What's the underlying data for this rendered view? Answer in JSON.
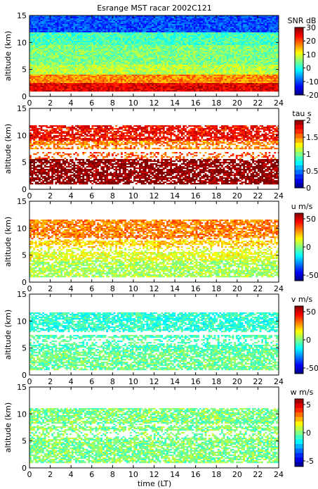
{
  "chart_data": {
    "type": "heatmap",
    "title": "Esrange MST racar 2002C121",
    "xlabel": "time (LT)",
    "xlim": [
      0,
      24
    ],
    "x_ticks": [
      "0",
      "2",
      "4",
      "6",
      "8",
      "10",
      "12",
      "14",
      "16",
      "18",
      "20",
      "22",
      "24"
    ],
    "panels": [
      {
        "name": "snr",
        "ylabel": "altitude (km)",
        "ylim": [
          0,
          15
        ],
        "y_ticks": [
          "0",
          "5",
          "10",
          "15"
        ],
        "colorbar_label": "SNR dB",
        "clim": [
          -20,
          30
        ],
        "colorbar_ticks": [
          "30",
          "20",
          "10",
          "0",
          "-10",
          "-20"
        ],
        "colormap": "jet",
        "coverage": "full",
        "bands": [
          {
            "alt_km": [
              1.0,
              2.5
            ],
            "value": 25
          },
          {
            "alt_km": [
              2.5,
              4.0
            ],
            "value": 17
          },
          {
            "alt_km": [
              4.0,
              6.0
            ],
            "value": 8
          },
          {
            "alt_km": [
              6.0,
              9.5
            ],
            "value": 5
          },
          {
            "alt_km": [
              9.5,
              12.0
            ],
            "value": 2
          },
          {
            "alt_km": [
              12.0,
              15.0
            ],
            "value": -10
          }
        ]
      },
      {
        "name": "tau",
        "ylabel": "altitude (km)",
        "ylim": [
          0,
          15
        ],
        "y_ticks": [
          "0",
          "5",
          "10",
          "15"
        ],
        "colorbar_label": "tau s",
        "clim": [
          0,
          2
        ],
        "colorbar_ticks": [
          "2",
          "1.5",
          "1",
          "0.5",
          "0"
        ],
        "colormap": "jet-discrete",
        "coverage": "sparse",
        "bands": [
          {
            "alt_km": [
              1.0,
              5.5
            ],
            "value": 2.0
          },
          {
            "alt_km": [
              5.5,
              7.0
            ],
            "value": 1.6
          },
          {
            "alt_km": [
              7.5,
              9.0
            ],
            "value": 1.5
          },
          {
            "alt_km": [
              9.0,
              12.0
            ],
            "value": 1.75
          }
        ]
      },
      {
        "name": "u",
        "ylabel": "altitude (km)",
        "ylim": [
          0,
          15
        ],
        "y_ticks": [
          "0",
          "5",
          "10",
          "15"
        ],
        "colorbar_label": "u m/s",
        "clim": [
          -60,
          60
        ],
        "colorbar_ticks": [
          "50",
          "0",
          "-50"
        ],
        "colormap": "jet",
        "coverage": "sparse",
        "bands": [
          {
            "alt_km": [
              1.0,
              4.0
            ],
            "value": 5
          },
          {
            "alt_km": [
              4.0,
              6.5
            ],
            "value": 12
          },
          {
            "alt_km": [
              6.5,
              8.0
            ],
            "value": 20
          },
          {
            "alt_km": [
              8.0,
              11.5
            ],
            "value": 30
          }
        ]
      },
      {
        "name": "v",
        "ylabel": "altitude (km)",
        "ylim": [
          0,
          15
        ],
        "y_ticks": [
          "0",
          "5",
          "10",
          "15"
        ],
        "colorbar_label": "v m/s",
        "clim": [
          -60,
          60
        ],
        "colorbar_ticks": [
          "50",
          "0",
          "-50"
        ],
        "colormap": "jet",
        "coverage": "sparse",
        "bands": [
          {
            "alt_km": [
              1.0,
              4.5
            ],
            "value": -2
          },
          {
            "alt_km": [
              4.5,
              7.5
            ],
            "value": -6
          },
          {
            "alt_km": [
              8.0,
              11.5
            ],
            "value": -10
          }
        ]
      },
      {
        "name": "w",
        "ylabel": "altitude (km)",
        "ylim": [
          0,
          15
        ],
        "y_ticks": [
          "0",
          "5",
          "10",
          "15"
        ],
        "colorbar_label": "w m/s",
        "clim": [
          -6,
          6
        ],
        "colorbar_ticks": [
          "5",
          "0",
          "-5"
        ],
        "colormap": "jet-discrete",
        "coverage": "sparse",
        "bands": [
          {
            "alt_km": [
              1.0,
              11.0
            ],
            "value": 0
          }
        ]
      }
    ]
  }
}
